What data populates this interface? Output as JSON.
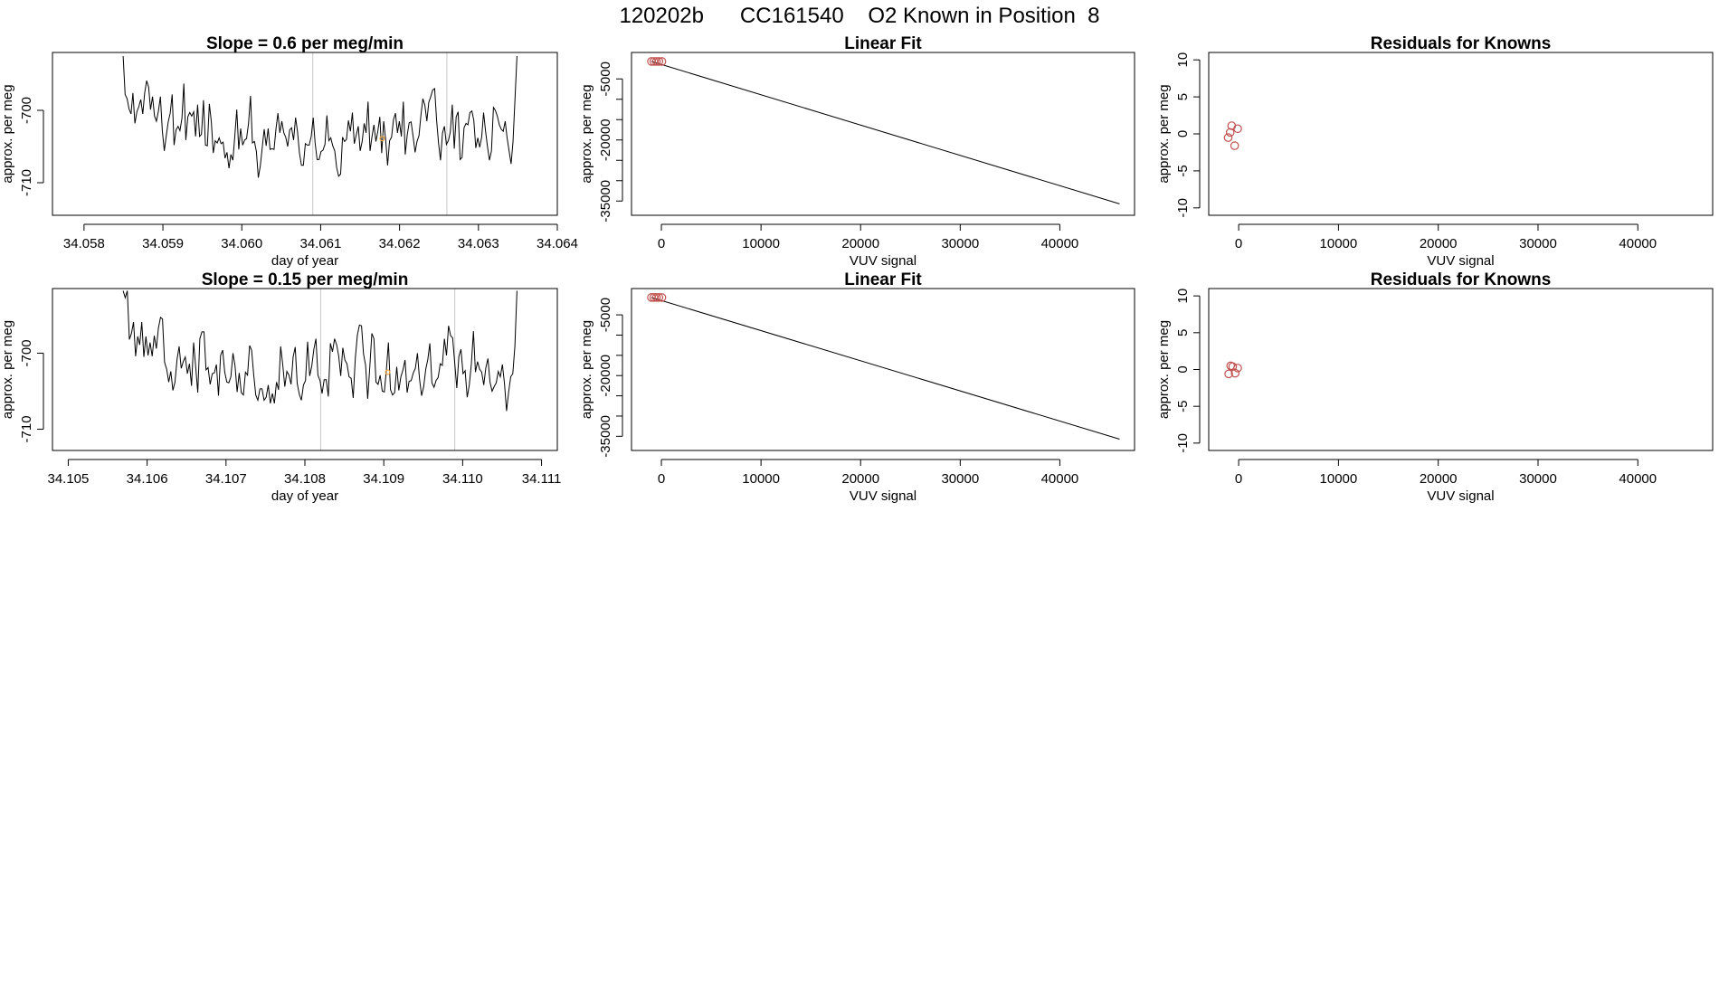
{
  "title": "120202b      CC161540    O2 Known in Position  8",
  "colors": {
    "points": "#c0504d",
    "marker": "#f2a63a",
    "gridline": "#c8c8c8",
    "line": "#000000"
  },
  "chart_data": [
    {
      "id": "timeseries-1",
      "type": "line",
      "title": "Slope =  0.6  per meg/min",
      "xlabel": "day of year",
      "ylabel": "approx. per meg",
      "xlim": [
        34.0576,
        34.064
      ],
      "ylim": [
        -714.5,
        -692
      ],
      "xticks": [
        34.058,
        34.059,
        34.06,
        34.061,
        34.062,
        34.063,
        34.064
      ],
      "xtick_labels": [
        "34.058",
        "34.059",
        "34.060",
        "34.061",
        "34.062",
        "34.063",
        "34.064"
      ],
      "yticks": [
        -710,
        -700
      ],
      "ytick_labels": [
        "-710",
        "-700"
      ],
      "vlines": [
        34.0609,
        34.0626
      ],
      "marker": {
        "x": 34.06178,
        "y": -703.9
      },
      "series": [
        {
          "name": "signal",
          "y": [
            -692.5,
            -697.8,
            -698.4,
            -699.8,
            -700.5,
            -697.6,
            -701.8,
            -700.2,
            -699.5,
            -698.5,
            -700.5,
            -697.6,
            -695.9,
            -696.8,
            -699.9,
            -698.1,
            -700.8,
            -701.5,
            -700.1,
            -698.1,
            -702.8,
            -705.6,
            -703.5,
            -701.6,
            -700.4,
            -697.8,
            -704.8,
            -702.7,
            -702.2,
            -702.8,
            -701.1,
            -696.3,
            -704.1,
            -700.9,
            -700.3,
            -700.8,
            -700.2,
            -703.6,
            -699.2,
            -703.6,
            -703.3,
            -698.6,
            -704.8,
            -704.9,
            -699.1,
            -701.6,
            -705.9,
            -704.2,
            -704.5,
            -703.8,
            -704.6,
            -704.4,
            -706.6,
            -705.8,
            -708.0,
            -706.1,
            -706.9,
            -703.6,
            -699.9,
            -705.4,
            -702.5,
            -704.8,
            -704.1,
            -703.9,
            -701.8,
            -698.0,
            -704.5,
            -704.3,
            -705.7,
            -709.3,
            -707.7,
            -705.1,
            -702.6,
            -704.9,
            -702.5,
            -705.4,
            -705.3,
            -705.4,
            -702.6,
            -700.4,
            -703.1,
            -701.5,
            -703.1,
            -703.7,
            -705.0,
            -702.7,
            -702.4,
            -704.1,
            -701.0,
            -702.9,
            -705.9,
            -707.6,
            -707.6,
            -704.6,
            -704.8,
            -704.8,
            -703.6,
            -701.0,
            -704.5,
            -706.8,
            -706.8,
            -705.7,
            -705.5,
            -704.7,
            -700.7,
            -704.2,
            -703.8,
            -704.9,
            -705.6,
            -707.9,
            -709.1,
            -708.8,
            -703.7,
            -704.3,
            -704.0,
            -701.4,
            -702.9,
            -700.3,
            -704.6,
            -703.4,
            -702.2,
            -705.6,
            -704.3,
            -701.8,
            -703.1,
            -698.8,
            -705.6,
            -703.7,
            -702.0,
            -704.3,
            -702.9,
            -700.9,
            -705.9,
            -701.5,
            -704.1,
            -707.6,
            -704.2,
            -703.7,
            -701.3,
            -700.4,
            -703.1,
            -701.5,
            -703.6,
            -698.8,
            -706.1,
            -703.4,
            -701.7,
            -701.6,
            -703.6,
            -705.8,
            -704.3,
            -703.5,
            -700.6,
            -698.4,
            -699.3,
            -701.5,
            -698.9,
            -698.1,
            -697.2,
            -697.0,
            -701.4,
            -704.5,
            -706.9,
            -703.1,
            -702.2,
            -704.7,
            -704.2,
            -703.0,
            -699.2,
            -705.3,
            -700.9,
            -700.2,
            -706.8,
            -706.5,
            -702.4,
            -701.8,
            -702.0,
            -700.3,
            -700.1,
            -701.4,
            -705.2,
            -703.8,
            -705.1,
            -703.7,
            -700.3,
            -702.9,
            -705.1,
            -706.9,
            -705.6,
            -699.6,
            -700.0,
            -700.8,
            -702.0,
            -702.6,
            -702.9,
            -701.5,
            -703.8,
            -705.6,
            -707.4,
            -704.4,
            -698.5,
            -692.5
          ]
        }
      ]
    },
    {
      "id": "linear-fit-1",
      "type": "line",
      "title": "Linear Fit",
      "xlabel": "VUV signal",
      "ylabel": "approx. per meg",
      "xlim": [
        -3000,
        47500
      ],
      "ylim": [
        -38500,
        1500
      ],
      "xticks": [
        0,
        10000,
        20000,
        30000,
        40000
      ],
      "xtick_labels": [
        "0",
        "10000",
        "20000",
        "30000",
        "40000"
      ],
      "yticks": [
        -35000,
        -20000,
        -5000
      ],
      "ytick_labels": [
        "-35000",
        "-20000",
        "-5000"
      ],
      "yticks_minor": [
        -30000,
        -25000,
        -15000,
        -10000
      ],
      "fit_line": {
        "x": [
          -1000,
          46000
        ],
        "y": [
          -700,
          -35700
        ]
      },
      "points": {
        "x": [
          -1000,
          -750,
          -500,
          -250,
          50
        ],
        "y": [
          -700,
          -700,
          -700,
          -700,
          -710
        ]
      }
    },
    {
      "id": "residuals-1",
      "type": "scatter",
      "title": "Residuals for Knowns",
      "xlabel": "VUV signal",
      "ylabel": "approx. per meg",
      "xlim": [
        -3000,
        47500
      ],
      "ylim": [
        -11,
        11
      ],
      "xticks": [
        0,
        10000,
        20000,
        30000,
        40000
      ],
      "xtick_labels": [
        "0",
        "10000",
        "20000",
        "30000",
        "40000"
      ],
      "yticks": [
        -10,
        -5,
        0,
        5,
        10
      ],
      "ytick_labels": [
        "-10",
        "-5",
        "0",
        "5",
        "10"
      ],
      "points": {
        "x": [
          -1050,
          -850,
          -700,
          -400,
          -100
        ],
        "y": [
          -0.5,
          0.2,
          1.1,
          -1.6,
          0.7
        ]
      }
    },
    {
      "id": "timeseries-2",
      "type": "line",
      "title": "Slope =  0.15  per meg/min",
      "xlabel": "day of year",
      "ylabel": "approx. per meg",
      "xlim": [
        34.1048,
        34.1112
      ],
      "ylim": [
        -712.8,
        -691.5
      ],
      "xticks": [
        34.105,
        34.106,
        34.107,
        34.108,
        34.109,
        34.11,
        34.111
      ],
      "xtick_labels": [
        "34.105",
        "34.106",
        "34.107",
        "34.108",
        "34.109",
        "34.110",
        "34.111"
      ],
      "yticks": [
        -710,
        -700
      ],
      "ytick_labels": [
        "-710",
        "-700"
      ],
      "vlines": [
        34.1082,
        34.1099
      ],
      "marker": {
        "x": 34.10905,
        "y": -702.5
      },
      "series": [
        {
          "name": "signal",
          "y": [
            -691.8,
            -692.7,
            -691.8,
            -698.2,
            -697.4,
            -695.9,
            -700.4,
            -697.8,
            -698.9,
            -695.9,
            -700.5,
            -697.8,
            -700.3,
            -698.6,
            -700.4,
            -697.7,
            -699.4,
            -696.7,
            -695.3,
            -695.5,
            -701.2,
            -702.1,
            -703.8,
            -702.4,
            -704.9,
            -703.8,
            -700.8,
            -699.1,
            -702.0,
            -701.1,
            -700.5,
            -702.7,
            -701.4,
            -704.3,
            -698.6,
            -701.8,
            -705.2,
            -698.1,
            -697.2,
            -697.2,
            -702.2,
            -701.9,
            -704.1,
            -702.7,
            -702.6,
            -701.5,
            -705.6,
            -700.3,
            -699.6,
            -702.5,
            -703.8,
            -703.9,
            -703.1,
            -700.0,
            -701.7,
            -705.1,
            -702.6,
            -705.2,
            -705.5,
            -702.5,
            -702.9,
            -699.0,
            -699.6,
            -702.8,
            -705.5,
            -706.2,
            -704.7,
            -704.7,
            -706.2,
            -705.8,
            -704.2,
            -706.6,
            -705.3,
            -706.6,
            -703.8,
            -704.8,
            -699.1,
            -701.5,
            -704.4,
            -702.4,
            -702.9,
            -704.1,
            -700.5,
            -699.2,
            -704.0,
            -705.4,
            -706.2,
            -704.2,
            -703.6,
            -698.5,
            -703.0,
            -701.7,
            -699.5,
            -698.1,
            -702.9,
            -703.6,
            -705.3,
            -703.5,
            -703.5,
            -705.7,
            -698.7,
            -699.8,
            -698.1,
            -698.9,
            -700.4,
            -703.0,
            -699.3,
            -700.9,
            -701.4,
            -703.1,
            -703.3,
            -705.9,
            -700.7,
            -697.6,
            -696.3,
            -696.4,
            -700.1,
            -701.6,
            -706.0,
            -701.9,
            -697.4,
            -698.1,
            -703.8,
            -704.1,
            -702.9,
            -705.0,
            -705.1,
            -702.3,
            -698.6,
            -704.8,
            -705.5,
            -705.2,
            -701.8,
            -704.9,
            -703.1,
            -702.2,
            -700.9,
            -705.2,
            -703.7,
            -703.6,
            -702.6,
            -702.0,
            -700.0,
            -703.4,
            -705.6,
            -704.4,
            -702.1,
            -700.8,
            -698.7,
            -703.9,
            -704.5,
            -703.6,
            -703.2,
            -701.4,
            -701.6,
            -698.1,
            -700.3,
            -696.4,
            -697.7,
            -698.0,
            -701.3,
            -704.6,
            -700.4,
            -699.5,
            -702.7,
            -702.3,
            -705.8,
            -704.2,
            -701.4,
            -697.1,
            -702.5,
            -701.1,
            -702.1,
            -702.5,
            -704.2,
            -701.9,
            -700.7,
            -703.8,
            -705.0,
            -704.4,
            -703.9,
            -702.4,
            -703.1,
            -701.5,
            -704.0,
            -707.6,
            -705.1,
            -703.1,
            -702.7,
            -699.1,
            -691.8
          ]
        }
      ]
    },
    {
      "id": "linear-fit-2",
      "type": "line",
      "title": "Linear Fit",
      "xlabel": "VUV signal",
      "ylabel": "approx. per meg",
      "xlim": [
        -3000,
        47500
      ],
      "ylim": [
        -38500,
        1500
      ],
      "xticks": [
        0,
        10000,
        20000,
        30000,
        40000
      ],
      "xtick_labels": [
        "0",
        "10000",
        "20000",
        "30000",
        "40000"
      ],
      "yticks": [
        -35000,
        -20000,
        -5000
      ],
      "ytick_labels": [
        "-35000",
        "-20000",
        "-5000"
      ],
      "yticks_minor": [
        -30000,
        -25000,
        -15000,
        -10000
      ],
      "fit_line": {
        "x": [
          -1000,
          46000
        ],
        "y": [
          -700,
          -35700
        ]
      },
      "points": {
        "x": [
          -1000,
          -750,
          -500,
          -250,
          50
        ],
        "y": [
          -700,
          -700,
          -700,
          -700,
          -710
        ]
      }
    },
    {
      "id": "residuals-2",
      "type": "scatter",
      "title": "Residuals for Knowns",
      "xlabel": "VUV signal",
      "ylabel": "approx. per meg",
      "xlim": [
        -3000,
        47500
      ],
      "ylim": [
        -11,
        11
      ],
      "xticks": [
        0,
        10000,
        20000,
        30000,
        40000
      ],
      "xtick_labels": [
        "0",
        "10000",
        "20000",
        "30000",
        "40000"
      ],
      "yticks": [
        -10,
        -5,
        0,
        5,
        10
      ],
      "ytick_labels": [
        "-10",
        "-5",
        "0",
        "5",
        "10"
      ],
      "points": {
        "x": [
          -1000,
          -800,
          -600,
          -350,
          -100
        ],
        "y": [
          -0.6,
          0.5,
          0.4,
          -0.5,
          0.2
        ]
      }
    }
  ]
}
